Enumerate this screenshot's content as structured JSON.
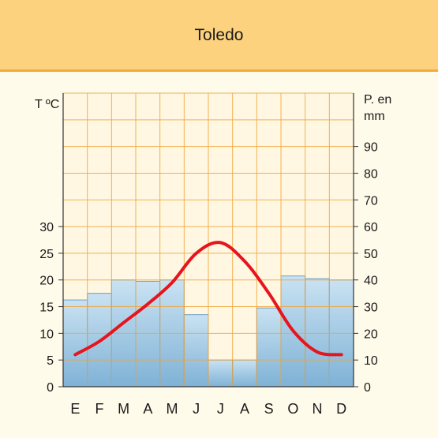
{
  "header": {
    "title": "Toledo"
  },
  "colors": {
    "header_bg": "#fdd27f",
    "plot_bg": "#fff7e2",
    "grid": "#f0a43a",
    "bar_top": "#c9e2f2",
    "bar_bottom": "#7fb2d6",
    "bar_edge": "#6f9fc4",
    "temperature_line": "#e8141d"
  },
  "chart_data": {
    "type": "bar+line",
    "categories": [
      "E",
      "F",
      "M",
      "A",
      "M",
      "J",
      "J",
      "A",
      "S",
      "O",
      "N",
      "D"
    ],
    "y_left_label": "T ºC",
    "y_left_ticks": [
      "0",
      "5",
      "10",
      "15",
      "20",
      "25",
      "30"
    ],
    "y_left_range": [
      0,
      55
    ],
    "y_right_label_line1": "P. en",
    "y_right_label_line2": "mm",
    "y_right_ticks": [
      "0",
      "10",
      "20",
      "30",
      "40",
      "50",
      "60",
      "70",
      "80",
      "90"
    ],
    "y_right_range": [
      0,
      110
    ],
    "grid": true,
    "series": [
      {
        "kind": "bar",
        "axis": "right",
        "values": [
          32.5,
          35,
          40,
          39.5,
          40,
          27,
          10,
          10,
          29.5,
          41.5,
          40.5,
          40
        ]
      },
      {
        "kind": "line",
        "axis": "left",
        "values": [
          6,
          8.5,
          12,
          15.5,
          19.5,
          25,
          27,
          23.5,
          17.5,
          10.5,
          6.5,
          6
        ]
      }
    ]
  }
}
